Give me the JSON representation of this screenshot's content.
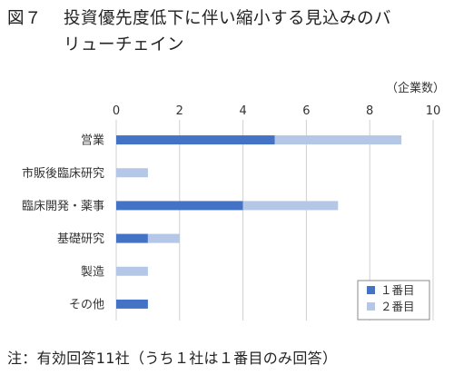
{
  "figure": {
    "number": "図７",
    "title_line1": "投資優先度低下に伴い縮小する見込みのバ",
    "title_line2": "リューチェイン"
  },
  "note": "注：有効回答11社（うち１社は１番目のみ回答）",
  "chart_data": {
    "type": "bar",
    "orientation": "horizontal",
    "stacked": true,
    "unit_label": "（企業数）",
    "xlim": [
      0,
      10
    ],
    "xticks": [
      0,
      2,
      4,
      6,
      8,
      10
    ],
    "grid": true,
    "legend_position": "bottom-right",
    "categories": [
      "営業",
      "市販後臨床研究",
      "臨床開発・薬事",
      "基礎研究",
      "製造",
      "その他"
    ],
    "series": [
      {
        "name": "１番目",
        "color": "#4472c4",
        "values": [
          5,
          0,
          4,
          1,
          0,
          1
        ]
      },
      {
        "name": "２番目",
        "color": "#b4c7e7",
        "values": [
          4,
          1,
          3,
          1,
          1,
          0
        ]
      }
    ]
  }
}
